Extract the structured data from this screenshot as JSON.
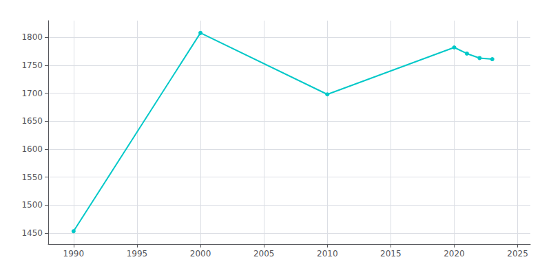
{
  "chart_data": {
    "type": "line",
    "x": [
      1990,
      2000,
      2010,
      2020,
      2021,
      2022,
      2023
    ],
    "values": [
      1453,
      1808,
      1698,
      1782,
      1771,
      1763,
      1761
    ],
    "color": "#00C8C8",
    "marker": "circle",
    "xlim": [
      1988,
      2026
    ],
    "ylim": [
      1430,
      1830
    ],
    "xticks": [
      1990,
      1995,
      2000,
      2005,
      2010,
      2015,
      2020,
      2025
    ],
    "yticks": [
      1450,
      1500,
      1550,
      1600,
      1650,
      1700,
      1750,
      1800
    ],
    "grid": true
  }
}
